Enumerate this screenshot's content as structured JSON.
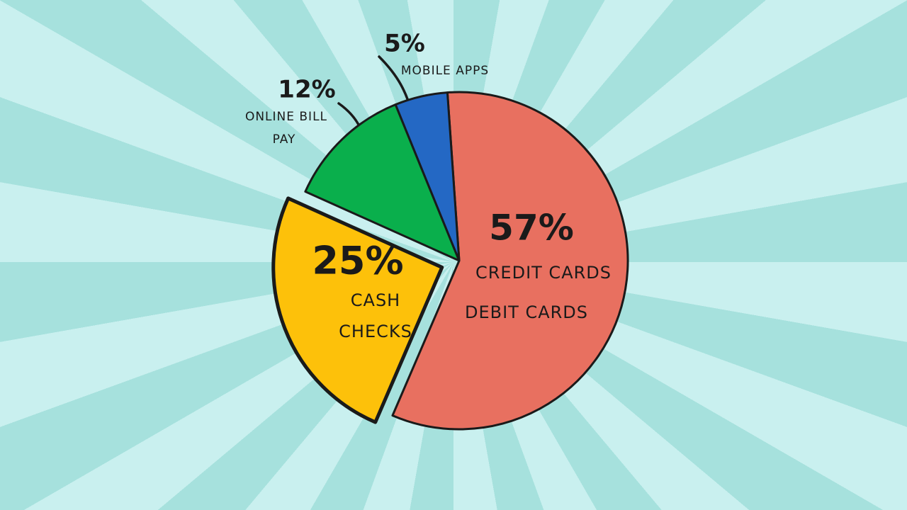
{
  "chart_data": {
    "type": "pie",
    "categories": [
      [
        "CREDIT CARDS",
        "DEBIT CARDS"
      ],
      [
        "CASH",
        "CHECKS"
      ],
      [
        "ONLINE BILL",
        "PAY"
      ],
      [
        "MOBILE APPS"
      ]
    ],
    "values": [
      57,
      25,
      12,
      5
    ],
    "value_labels": [
      "57%",
      "25%",
      "12%",
      "5%"
    ],
    "colors": [
      "#e87060",
      "#fdc10a",
      "#0aaf4c",
      "#2468c4"
    ],
    "exploded": [
      false,
      true,
      false,
      false
    ]
  }
}
